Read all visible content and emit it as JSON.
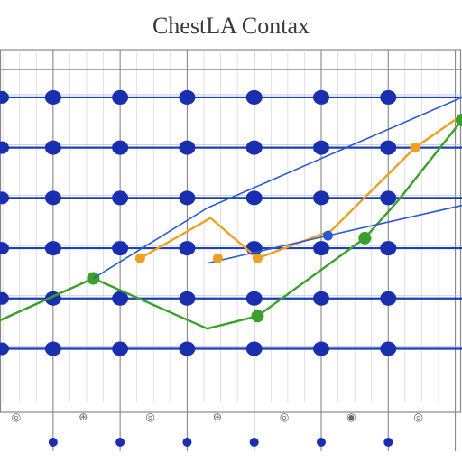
{
  "chart_data": {
    "type": "line",
    "title": "ChestLA Contax",
    "xlabel": "",
    "ylabel": "",
    "grid": true,
    "x_ticks": 7,
    "xlim": [
      0,
      7
    ],
    "ylim": [
      0,
      7
    ],
    "gridlines": [
      1,
      2,
      3,
      4,
      5
    ],
    "colors": {
      "grid": "#888888",
      "band": "#1a3fb8",
      "dot": "#1a2fb0",
      "orange": "#f0a020",
      "green": "#3aa02a",
      "blue_line": "#2a5ad0"
    },
    "series": [
      {
        "key": "orange",
        "marker_indices": [
          0,
          2,
          4
        ],
        "points": [
          [
            2.2,
            2.85
          ],
          [
            3.25,
            3.65
          ],
          [
            3.95,
            2.85
          ],
          [
            5.05,
            3.4
          ],
          [
            6.3,
            5.05
          ],
          [
            7.0,
            5.7
          ]
        ]
      },
      {
        "key": "green",
        "marker_indices": [
          1,
          3,
          4,
          6
        ],
        "points": [
          [
            0.0,
            1.55
          ],
          [
            1.5,
            2.45
          ],
          [
            3.2,
            1.45
          ],
          [
            3.95,
            1.7
          ],
          [
            5.55,
            3.25
          ],
          [
            6.05,
            4.0
          ],
          [
            7.0,
            5.6
          ]
        ]
      },
      {
        "key": "blue_line",
        "marker_indices": [],
        "points": [
          [
            1.5,
            2.45
          ],
          [
            3.2,
            3.85
          ],
          [
            7.0,
            6.05
          ]
        ]
      },
      {
        "key": "blue_line",
        "marker_indices": [
          1
        ],
        "points": [
          [
            3.2,
            2.75
          ],
          [
            5.0,
            3.3
          ],
          [
            7.0,
            3.9
          ]
        ]
      }
    ],
    "row_dots": [
      0.9,
      1.9,
      2.9,
      3.9,
      4.9,
      5.9
    ],
    "bottom_dots": [
      0.9,
      1.9,
      2.9,
      3.9,
      4.9,
      5.9
    ],
    "scatter_points": [
      [
        3.25,
        2.85
      ]
    ],
    "tick_glyphs": [
      "◎",
      "⊕",
      "◎",
      "⊕",
      "◎",
      "◉",
      "◎"
    ]
  }
}
